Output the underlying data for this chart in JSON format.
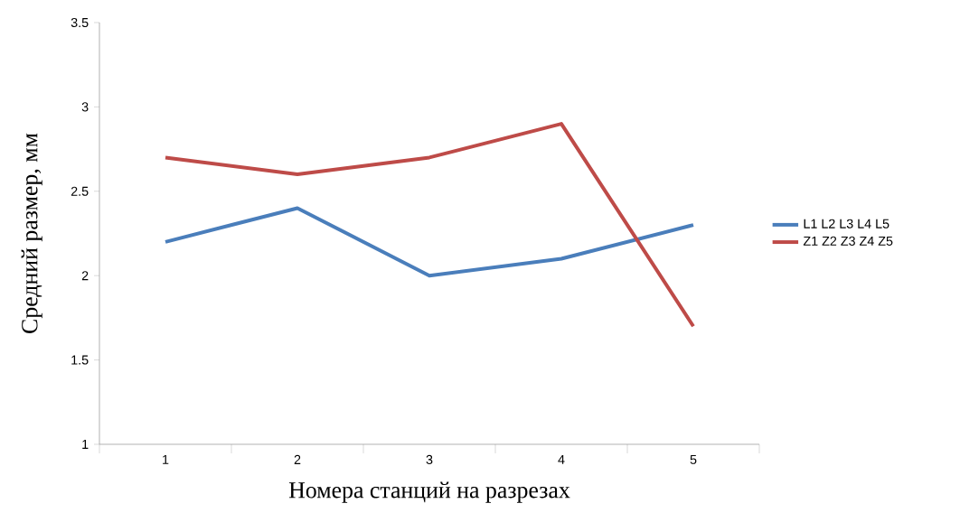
{
  "chart_data": {
    "type": "line",
    "xlabel": "Номера станций на разрезах",
    "ylabel": "Средний размер, мм",
    "categories": [
      "1",
      "2",
      "3",
      "4",
      "5"
    ],
    "series": [
      {
        "name": "L1 L2 L3 L4 L5",
        "color": "#4a7ebb",
        "values": [
          2.2,
          2.4,
          2.0,
          2.1,
          2.3
        ]
      },
      {
        "name": "Z1 Z2 Z3 Z4 Z5",
        "color": "#be4b48",
        "values": [
          2.7,
          2.6,
          2.7,
          2.9,
          1.7
        ]
      }
    ],
    "ylim": [
      1,
      3.5
    ],
    "yticks": [
      1,
      1.5,
      2,
      2.5,
      3,
      3.5
    ],
    "legend": "right",
    "marker": "none",
    "line_style": "solid"
  }
}
